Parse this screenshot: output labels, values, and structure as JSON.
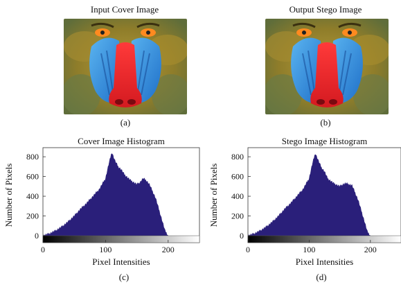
{
  "panels": {
    "a": {
      "title": "Input Cover Image",
      "label": "(a)"
    },
    "b": {
      "title": "Output Stego Image",
      "label": "(b)"
    },
    "c": {
      "label": "(c)"
    },
    "d": {
      "label": "(d)"
    }
  },
  "colors": {
    "bars": "#2a1f7a",
    "fur": "#8f7d2a",
    "nose": "#e21f25",
    "cheek": "#2f8fe0",
    "eye": "#ff8a1f"
  },
  "chart_data": [
    {
      "type": "bar",
      "title": "Cover Image Histogram",
      "xlabel": "Pixel Intensities",
      "ylabel": "Number of Pixels",
      "xlim": [
        0,
        250
      ],
      "ylim": [
        0,
        850
      ],
      "xticks": [
        "0",
        "100",
        "200"
      ],
      "yticks": [
        "0",
        "200",
        "400",
        "600",
        "800"
      ],
      "grid": false,
      "x": [
        0,
        10,
        20,
        30,
        40,
        50,
        60,
        70,
        80,
        90,
        100,
        105,
        110,
        115,
        120,
        125,
        130,
        140,
        150,
        155,
        160,
        165,
        170,
        180,
        190,
        195,
        200
      ],
      "values": [
        0,
        20,
        50,
        90,
        140,
        200,
        270,
        330,
        400,
        470,
        580,
        720,
        845,
        760,
        700,
        670,
        620,
        560,
        520,
        540,
        580,
        560,
        520,
        380,
        160,
        50,
        0
      ]
    },
    {
      "type": "bar",
      "title": "Stego Image Histogram",
      "xlabel": "Pixel Intensities",
      "ylabel": "Number of Pixels",
      "xlim": [
        0,
        250
      ],
      "ylim": [
        0,
        850
      ],
      "xticks": [
        "0",
        "100",
        "200"
      ],
      "yticks": [
        "0",
        "200",
        "400",
        "600",
        "800"
      ],
      "grid": false,
      "x": [
        0,
        10,
        20,
        30,
        40,
        50,
        60,
        70,
        80,
        90,
        100,
        105,
        110,
        115,
        120,
        125,
        130,
        140,
        150,
        155,
        160,
        165,
        170,
        180,
        190,
        195,
        200
      ],
      "values": [
        0,
        20,
        50,
        90,
        140,
        200,
        270,
        330,
        400,
        470,
        580,
        720,
        835,
        760,
        690,
        650,
        580,
        530,
        500,
        520,
        530,
        520,
        510,
        360,
        150,
        40,
        0
      ]
    }
  ]
}
